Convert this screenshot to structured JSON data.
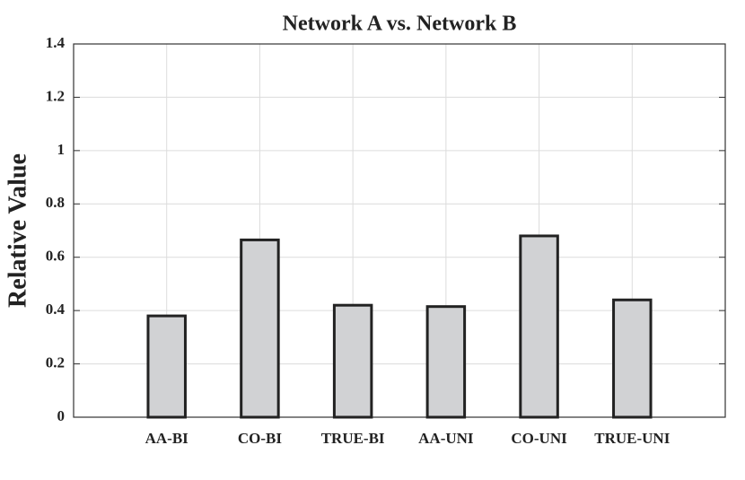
{
  "chart_data": {
    "type": "bar",
    "title": "Network A vs. Network B",
    "y_label": "Relative Value",
    "categories": [
      "AA-BI",
      "CO-BI",
      "TRUE-BI",
      "AA-UNI",
      "CO-UNI",
      "TRUE-UNI"
    ],
    "values": [
      0.38,
      0.665,
      0.42,
      0.415,
      0.68,
      0.44
    ],
    "color": "#d1d2d4",
    "ylim": [
      0,
      1.4
    ],
    "yticks": [
      0,
      0.2,
      0.4,
      0.6,
      0.8,
      1,
      1.2,
      1.4
    ],
    "grid": true
  }
}
